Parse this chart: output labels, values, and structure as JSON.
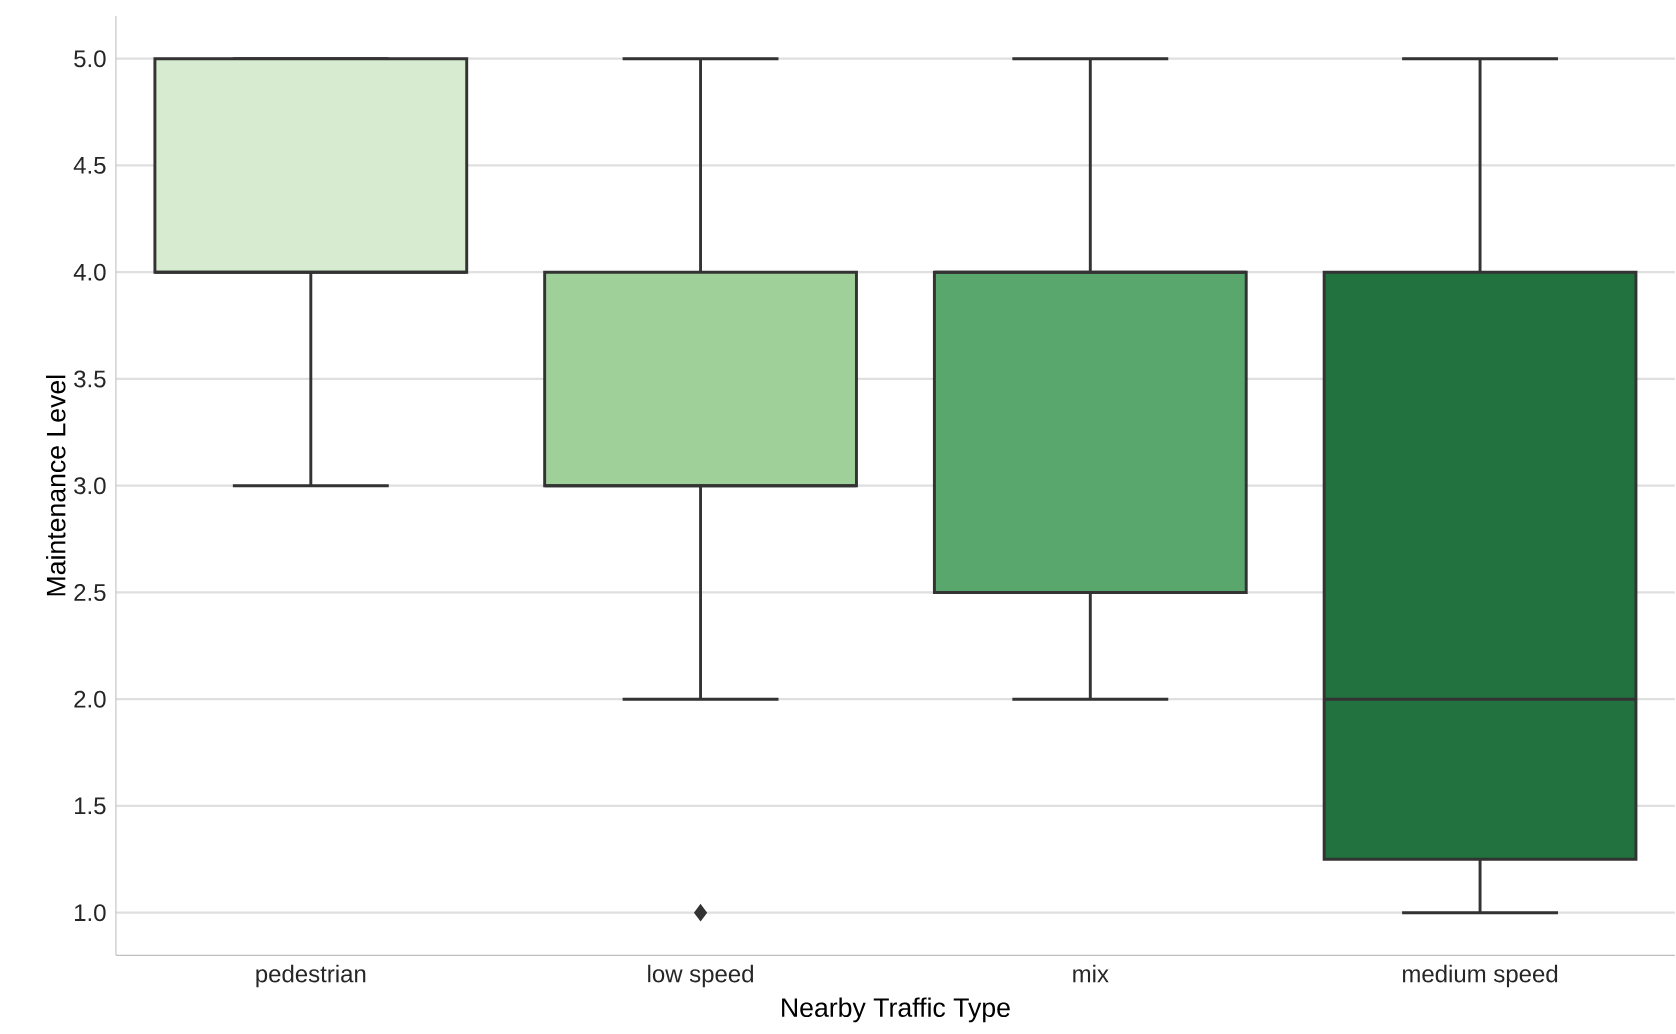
{
  "chart_data": {
    "type": "box",
    "xlabel": "Nearby Traffic Type",
    "ylabel": "Maintenance Level",
    "categories": [
      "pedestrian",
      "low speed",
      "mix",
      "medium speed"
    ],
    "boxes": [
      {
        "low": 3,
        "q1": 4,
        "median": 4,
        "q3": 5,
        "high": 5
      },
      {
        "low": 2,
        "q1": 3,
        "median": 3,
        "q3": 4,
        "high": 5,
        "outliers": [
          1
        ]
      },
      {
        "low": 2,
        "q1": 2.5,
        "median": 4,
        "q3": 4,
        "high": 5
      },
      {
        "low": 1,
        "q1": 1.25,
        "median": 2,
        "q3": 4,
        "high": 5
      }
    ],
    "colors": [
      "#d6ebd0",
      "#a0d09a",
      "#5aa76e",
      "#22723f"
    ],
    "ylim": [
      0.8,
      5.2
    ],
    "yticks": [
      {
        "value": 1,
        "label": "1.0"
      },
      {
        "value": 1.5,
        "label": "1.5"
      },
      {
        "value": 2,
        "label": "2.0"
      },
      {
        "value": 2.5,
        "label": "2.5"
      },
      {
        "value": 3,
        "label": "3.0"
      },
      {
        "value": 3.5,
        "label": "3.5"
      },
      {
        "value": 4,
        "label": "4.0"
      },
      {
        "value": 4.5,
        "label": "4.5"
      },
      {
        "value": 5,
        "label": "5.0"
      }
    ],
    "grid": "y",
    "marker": "diamond"
  }
}
